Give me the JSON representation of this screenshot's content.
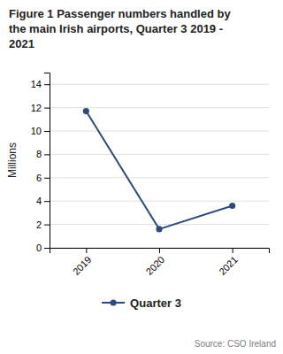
{
  "chart_data": {
    "type": "line",
    "title": "Figure 1 Passenger numbers handled by\nthe main Irish airports, Quarter 3 2019 -\n2021",
    "categories": [
      "2019",
      "2020",
      "2021"
    ],
    "series": [
      {
        "name": "Quarter 3",
        "color": "#2E4A7A",
        "marker": "circle",
        "values": [
          11.7,
          1.6,
          3.6
        ]
      }
    ],
    "y_label": "Millions",
    "ylim": [
      0,
      15
    ],
    "yticks": [
      0,
      2,
      4,
      6,
      8,
      10,
      12,
      14
    ],
    "grid": true,
    "legend": "bottom",
    "source": "Source: CSO Ireland"
  }
}
